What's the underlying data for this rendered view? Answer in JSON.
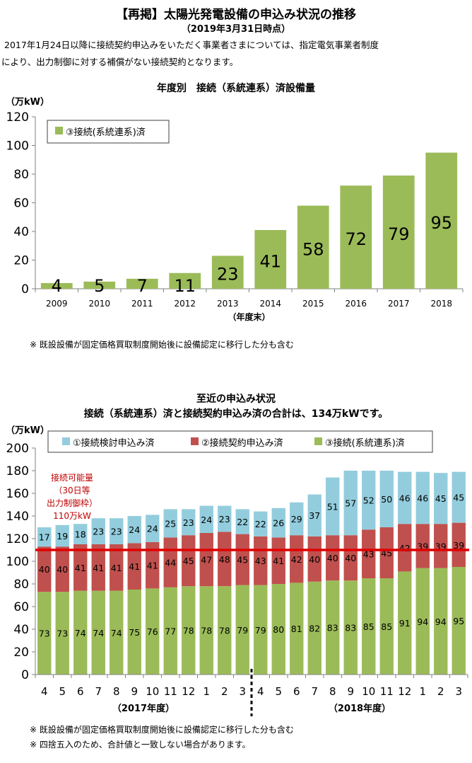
{
  "header": {
    "title": "【再掲】太陽光発電設備の申込み状況の推移",
    "subtitle": "（2019年3月31日時点）",
    "notice_line1": "2017年1月24日以降に接続契約申込みをいただく事業者さまについては、指定電気事業者制度",
    "notice_line2": "により、出力制御に対する補償がない接続契約となります。"
  },
  "chart1_note": "※ 既設設備が固定価格買取制度開始後に設備認定に移行した分も含む",
  "chart2_title_line1": "至近の申込み状況",
  "chart2_title_line2": "接続（系統連系）済と接続契約申込み済の合計は、134万kWです。",
  "footnotes": [
    "※ 既設設備が固定価格買取制度開始後に設備認定に移行した分も含む",
    "※ 四捨五入のため、合計値と一致しない場合があります。"
  ],
  "colors": {
    "green": "#9bbb59",
    "red": "#c0504d",
    "blue": "#93cddd",
    "limit_line": "#e00000",
    "limit_text": "#c00000"
  },
  "chart_data": [
    {
      "type": "bar",
      "title": "年度別　接続（系統連系）済設備量",
      "ylabel": "（万kW）",
      "xlabel": "（年度末）",
      "ylim": [
        0,
        120
      ],
      "yticks": [
        0,
        20,
        40,
        60,
        80,
        100,
        120
      ],
      "grid": false,
      "legend_position": "top-left",
      "categories": [
        "2009",
        "2010",
        "2011",
        "2012",
        "2013",
        "2014",
        "2015",
        "2016",
        "2017",
        "2018"
      ],
      "series": [
        {
          "name": "③接続(系統連系)済",
          "values": [
            4,
            5,
            7,
            11,
            23,
            41,
            58,
            72,
            79,
            95
          ]
        }
      ]
    },
    {
      "type": "bar",
      "stacked": true,
      "ylabel": "（万kW）",
      "ylim": [
        0,
        200
      ],
      "yticks": [
        0,
        20,
        40,
        60,
        80,
        100,
        120,
        140,
        160,
        180,
        200
      ],
      "grid": false,
      "legend_position": "top",
      "categories": [
        "4",
        "5",
        "6",
        "7",
        "8",
        "9",
        "10",
        "11",
        "12",
        "1",
        "2",
        "3",
        "4",
        "5",
        "6",
        "7",
        "8",
        "9",
        "10",
        "11",
        "12",
        "1",
        "2",
        "3"
      ],
      "groups": [
        {
          "label": "（2017年度）",
          "from": 0,
          "to": 11
        },
        {
          "label": "（2018年度）",
          "from": 12,
          "to": 23
        }
      ],
      "series": [
        {
          "name": "③接続(系統連系)済",
          "values": [
            73,
            73,
            74,
            74,
            74,
            75,
            76,
            77,
            78,
            78,
            78,
            79,
            79,
            80,
            81,
            82,
            83,
            83,
            85,
            85,
            91,
            94,
            94,
            95
          ]
        },
        {
          "name": "②接続契約申込み済",
          "values": [
            40,
            40,
            41,
            41,
            41,
            41,
            41,
            44,
            45,
            47,
            48,
            45,
            43,
            41,
            42,
            40,
            40,
            40,
            43,
            45,
            42,
            39,
            39,
            39
          ]
        },
        {
          "name": "①接続検討申込み済",
          "values": [
            17,
            19,
            18,
            23,
            23,
            24,
            24,
            25,
            23,
            24,
            23,
            22,
            22,
            26,
            29,
            37,
            51,
            57,
            52,
            50,
            46,
            46,
            45,
            45
          ]
        }
      ],
      "reference_line": {
        "value": 110,
        "label_lines": [
          "接続可能量",
          "（30日等",
          "出力制御枠）",
          "110万kW"
        ]
      }
    }
  ]
}
